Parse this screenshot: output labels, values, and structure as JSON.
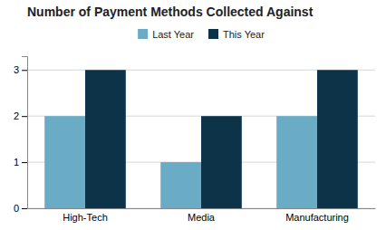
{
  "chart_data": {
    "type": "bar",
    "title": "Number of Payment Methods Collected Against",
    "categories": [
      "High-Tech",
      "Media",
      "Manufacturing"
    ],
    "series": [
      {
        "name": "Last Year",
        "color": "#6aacc5",
        "values": [
          2,
          1,
          2
        ]
      },
      {
        "name": "This Year",
        "color": "#0d3349",
        "values": [
          3,
          2,
          3
        ]
      }
    ],
    "ylim": [
      0,
      3.3
    ],
    "yticks": [
      0,
      1,
      2,
      3
    ],
    "grid": true,
    "legend": "top"
  }
}
